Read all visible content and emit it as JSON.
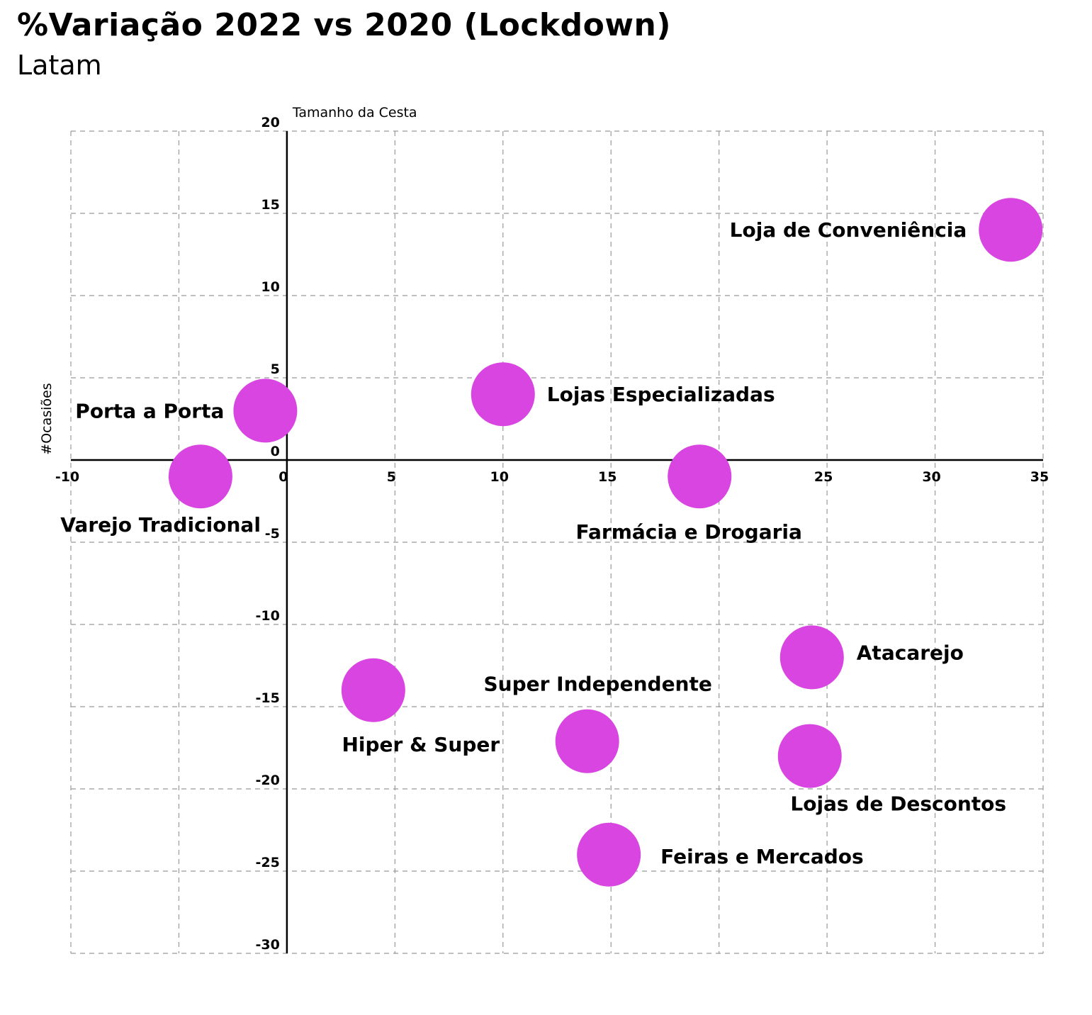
{
  "title": "%Variação 2022 vs 2020 (Lockdown)",
  "subtitle": "Latam",
  "chart_data": {
    "type": "scatter",
    "xlabel": "Tamanho da Cesta",
    "ylabel": "#Ocasiões",
    "xlim": [
      -10,
      35
    ],
    "ylim": [
      -30,
      20
    ],
    "xticks": [
      "-10",
      "-5",
      "0",
      "5",
      "10",
      "15",
      "20",
      "25",
      "30",
      "35"
    ],
    "yticks": [
      "20",
      "15",
      "10",
      "5",
      "0",
      "-5",
      "-10",
      "-15",
      "-20",
      "-25",
      "-30"
    ],
    "grid": true,
    "marker_color": "#d845e0",
    "points": [
      {
        "label": "Loja de Conveniência",
        "x": 33.5,
        "y": 14.0
      },
      {
        "label": "Lojas Especializadas",
        "x": 10.0,
        "y": 4.0
      },
      {
        "label": "Porta a Porta",
        "x": -1.0,
        "y": 3.0
      },
      {
        "label": "Varejo Tradicional",
        "x": -4.0,
        "y": -1.0
      },
      {
        "label": "Farmácia e Drogaria",
        "x": 19.1,
        "y": -1.0
      },
      {
        "label": "Atacarejo",
        "x": 24.3,
        "y": -12.0
      },
      {
        "label": "Super Independente",
        "x": 13.9,
        "y": -17.1
      },
      {
        "label": "Hiper & Super",
        "x": 4.0,
        "y": -14.0
      },
      {
        "label": "Lojas de Descontos",
        "x": 24.2,
        "y": -18.0
      },
      {
        "label": "Feiras e Mercados",
        "x": 14.9,
        "y": -24.0
      }
    ]
  }
}
